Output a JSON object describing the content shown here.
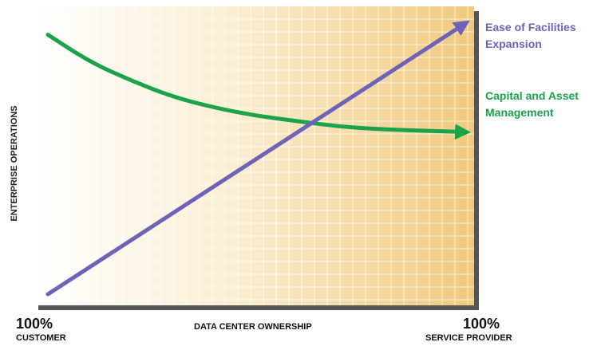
{
  "chart_data": {
    "type": "line",
    "ylabel": "ENTERPRISE OPERATIONS",
    "xlabel": "DATA CENTER OWNERSHIP",
    "x_left_label": {
      "pct": "100%",
      "name": "CUSTOMER"
    },
    "x_right_label": {
      "pct": "100%",
      "name": "SERVICE PROVIDER"
    },
    "xlim": [
      0,
      1
    ],
    "ylim": [
      0,
      1
    ],
    "grid": true,
    "series": [
      {
        "name": "Capital and Asset Management",
        "name_lines": [
          "Capital and Asset",
          "Management"
        ],
        "color": "#1aa34a",
        "x": [
          0,
          0.1,
          0.2,
          0.3,
          0.4,
          0.5,
          0.6,
          0.7,
          0.8,
          0.9,
          1.0
        ],
        "y": [
          0.96,
          0.86,
          0.79,
          0.73,
          0.69,
          0.66,
          0.64,
          0.62,
          0.61,
          0.605,
          0.6
        ]
      },
      {
        "name": "Ease of Facilities Expansion",
        "name_lines": [
          "Ease of Facilities",
          "Expansion"
        ],
        "color": "#6f63b8",
        "x": [
          0,
          1
        ],
        "y": [
          0.0,
          1.0
        ]
      }
    ]
  }
}
